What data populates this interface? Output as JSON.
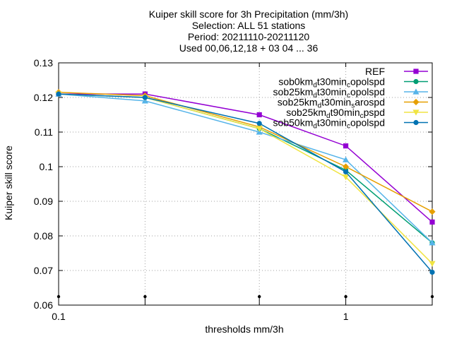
{
  "chart_data": {
    "type": "line",
    "title_lines": [
      "Kuiper skill score  for 3h Precipitation (mm/3h)",
      "Selection: ALL      51 stations",
      "Period: 20211110-20211120",
      "Used 00,06,12,18 + 03 04 ... 36"
    ],
    "xlabel": "thresholds mm/3h",
    "ylabel": "Kuiper skill score",
    "x_scale": "log",
    "xlim": [
      0.1,
      2
    ],
    "ylim": [
      0.06,
      0.13
    ],
    "x_ticks": [
      {
        "v": 0.1,
        "label": "0.1"
      },
      {
        "v": 1,
        "label": "1"
      }
    ],
    "y_ticks": [
      {
        "v": 0.06,
        "label": "0.06"
      },
      {
        "v": 0.07,
        "label": "0.07"
      },
      {
        "v": 0.08,
        "label": "0.08"
      },
      {
        "v": 0.09,
        "label": "0.09"
      },
      {
        "v": 0.1,
        "label": "0.1"
      },
      {
        "v": 0.11,
        "label": "0.11"
      },
      {
        "v": 0.12,
        "label": "0.12"
      },
      {
        "v": 0.13,
        "label": "0.13"
      }
    ],
    "grid": true,
    "legend_position": "top-right",
    "x": [
      0.1,
      0.2,
      0.5,
      1.0,
      2.0
    ],
    "series": [
      {
        "name": "REF",
        "label": [
          {
            "t": "REF"
          }
        ],
        "color": "#9400d3",
        "marker": "square",
        "values": [
          0.121,
          0.121,
          0.115,
          0.106,
          0.084
        ]
      },
      {
        "name": "sob0kmdt30mincopolspd",
        "label": [
          {
            "t": "sob0km"
          },
          {
            "t": "d",
            "sub": true
          },
          {
            "t": "t30min"
          },
          {
            "t": "c",
            "sub": true
          },
          {
            "t": "opolspd"
          }
        ],
        "color": "#009e73",
        "marker": "circle",
        "values": [
          0.121,
          0.12,
          0.111,
          0.099,
          0.078
        ]
      },
      {
        "name": "sob25kmdt30mincopolspd",
        "label": [
          {
            "t": "sob25km"
          },
          {
            "t": "d",
            "sub": true
          },
          {
            "t": "t30min"
          },
          {
            "t": "c",
            "sub": true
          },
          {
            "t": "opolspd"
          }
        ],
        "color": "#56b4e9",
        "marker": "triangle",
        "values": [
          0.121,
          0.119,
          0.11,
          0.102,
          0.078
        ]
      },
      {
        "name": "sob25kmdt30minsarospd",
        "label": [
          {
            "t": "sob25km"
          },
          {
            "t": "d",
            "sub": true
          },
          {
            "t": "t30min"
          },
          {
            "t": "s",
            "sub": true
          },
          {
            "t": "arospd"
          }
        ],
        "color": "#e69f00",
        "marker": "diamond",
        "values": [
          0.1215,
          0.1205,
          0.1115,
          0.1,
          0.087
        ]
      },
      {
        "name": "sob25kmdt90mincpspd",
        "label": [
          {
            "t": "sob25km"
          },
          {
            "t": "d",
            "sub": true
          },
          {
            "t": "t90min"
          },
          {
            "t": "c",
            "sub": true
          },
          {
            "t": "pspd"
          }
        ],
        "color": "#f0e442",
        "marker": "triangle-down",
        "values": [
          0.121,
          0.12,
          0.111,
          0.097,
          0.072
        ]
      },
      {
        "name": "sob50kmdt30mincopolspd",
        "label": [
          {
            "t": "sob50km"
          },
          {
            "t": "d",
            "sub": true
          },
          {
            "t": "t30min"
          },
          {
            "t": "c",
            "sub": true
          },
          {
            "t": "opolspd"
          }
        ],
        "color": "#0072b2",
        "marker": "circle",
        "values": [
          0.121,
          0.12,
          0.1125,
          0.0985,
          0.0695
        ]
      }
    ]
  }
}
